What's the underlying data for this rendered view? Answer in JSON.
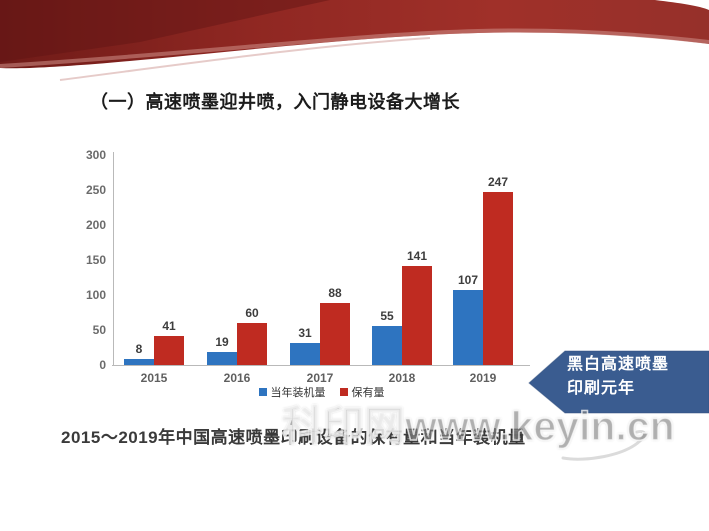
{
  "slide": {
    "title": "（一）高速喷墨迎井喷，入门静电设备大增长",
    "caption": "2015～2019年中国高速喷墨印刷设备的保有量和当年装机量",
    "watermark": "科印网www.keyin.cn",
    "callout": {
      "line1": "黑白高速喷墨",
      "line2": "印刷元年",
      "color": "#3a5c90"
    }
  },
  "chart_data": {
    "type": "bar",
    "title": "",
    "xlabel": "",
    "ylabel": "",
    "categories": [
      "2015",
      "2016",
      "2017",
      "2018",
      "2019"
    ],
    "series": [
      {
        "name": "当年装机量",
        "color": "#2e74c0",
        "values": [
          8,
          19,
          31,
          55,
          107
        ]
      },
      {
        "name": "保有量",
        "color": "#bf2b21",
        "values": [
          41,
          60,
          88,
          141,
          247
        ]
      }
    ],
    "ylim": [
      0,
      300
    ],
    "yticks": [
      0,
      50,
      100,
      150,
      200,
      250,
      300
    ],
    "grid": false,
    "legend_position": "bottom"
  },
  "colors": {
    "banner_dark_red": "#7d201d",
    "banner_red": "#9b2d27",
    "banner_highlight": "#cf8d85",
    "axis_gray": "#b9b9b9",
    "text_dark": "#1c1c1c"
  }
}
